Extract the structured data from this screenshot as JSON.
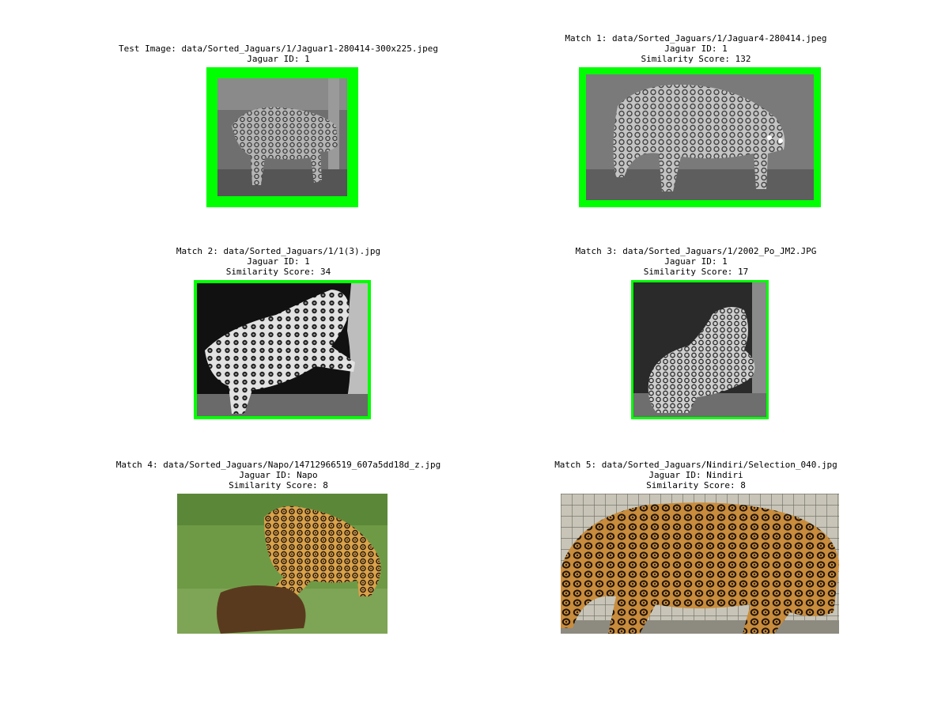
{
  "colors": {
    "match_border": "#00ff00",
    "background": "#ffffff"
  },
  "panels": [
    {
      "lines": [
        "Test Image: data/Sorted_Jaguars/1/Jaguar1-280414-300x225.jpeg",
        "Jaguar ID: 1"
      ],
      "bordered": true,
      "photo": "grayscale-jaguar-forest-night"
    },
    {
      "lines": [
        "Match 1: data/Sorted_Jaguars/1/Jaguar4-280414.jpeg",
        "Jaguar ID: 1",
        "Similarity Score: 132"
      ],
      "bordered": true,
      "photo": "grayscale-jaguar-walking-night"
    },
    {
      "lines": [
        "Match 2: data/Sorted_Jaguars/1/1(3).jpg",
        "Jaguar ID: 1",
        "Similarity Score: 34"
      ],
      "bordered": true,
      "photo": "grayscale-jaguar-scratching-tree"
    },
    {
      "lines": [
        "Match 3: data/Sorted_Jaguars/1/2002_Po_JM2.JPG",
        "Jaguar ID: 1",
        "Similarity Score: 17"
      ],
      "bordered": true,
      "photo": "grayscale-jaguar-at-tree"
    },
    {
      "lines": [
        "Match 4: data/Sorted_Jaguars/Napo/14712966519_607a5dd18d_z.jpg",
        "Jaguar ID: Napo",
        "Similarity Score: 8"
      ],
      "bordered": false,
      "photo": "color-jaguar-on-grass-with-log"
    },
    {
      "lines": [
        "Match 5: data/Sorted_Jaguars/Nindiri/Selection_040.jpg",
        "Jaguar ID: Nindiri",
        "Similarity Score: 8"
      ],
      "bordered": false,
      "photo": "color-jaguar-in-enclosure"
    }
  ]
}
